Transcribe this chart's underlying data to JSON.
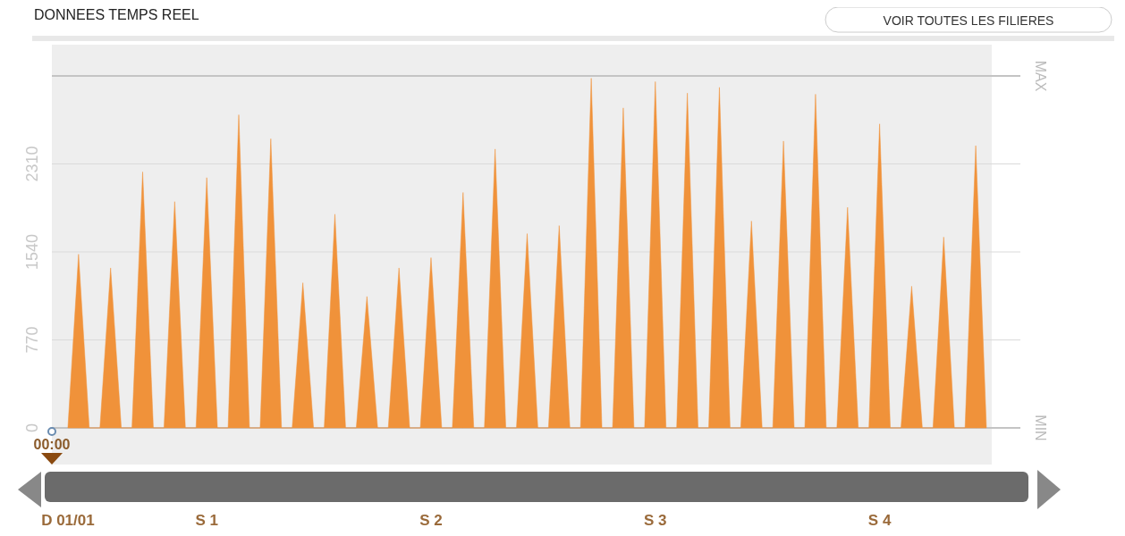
{
  "chart_data": {
    "type": "area",
    "title": "DONNEES TEMPS REEL",
    "categories": [
      "D 01/01",
      null,
      null,
      null,
      null,
      null,
      null,
      null,
      null,
      null,
      null,
      null,
      null,
      "S 1",
      null,
      null,
      null,
      null,
      null,
      null,
      null,
      null,
      null,
      null,
      null,
      null,
      null,
      null,
      null,
      null,
      null,
      null,
      null,
      null,
      "S 2",
      null,
      null,
      null,
      null,
      null,
      null,
      null,
      null,
      null,
      null,
      null,
      null,
      null,
      null,
      null,
      null,
      null,
      null,
      null,
      null,
      "S 3",
      null,
      null,
      null,
      null,
      null,
      null,
      null,
      null,
      null,
      null,
      null,
      null,
      null,
      null,
      null,
      null,
      null,
      null,
      null,
      null,
      "S 4",
      null,
      null,
      null,
      null,
      null,
      null,
      null,
      null,
      null,
      null
    ],
    "series": [
      {
        "color": "#f0923a",
        "values": [
          0,
          1520,
          0,
          0,
          1400,
          0,
          0,
          2240,
          0,
          0,
          1980,
          0,
          0,
          2190,
          0,
          0,
          2740,
          0,
          0,
          2530,
          0,
          0,
          1270,
          0,
          0,
          1870,
          0,
          0,
          1150,
          0,
          0,
          1400,
          0,
          0,
          1490,
          0,
          0,
          2060,
          0,
          0,
          2440,
          0,
          0,
          1700,
          0,
          0,
          1770,
          0,
          0,
          3060,
          0,
          0,
          2800,
          0,
          0,
          3030,
          0,
          0,
          2930,
          0,
          0,
          2980,
          0,
          0,
          1810,
          0,
          0,
          2510,
          0,
          0,
          2920,
          0,
          0,
          1930,
          0,
          0,
          2660,
          0,
          0,
          1240,
          0,
          0,
          1670,
          0,
          0,
          2470,
          0
        ]
      }
    ],
    "ylim": [
      0,
      3080
    ],
    "yticks": [
      0,
      770,
      1540,
      2310
    ],
    "grid": "y",
    "ref_lines": [
      {
        "axis": "y",
        "value": 3080,
        "label": "MAX",
        "color": "#c4c4c4"
      },
      {
        "axis": "y",
        "value": 0,
        "label": "MIN",
        "color": "#c4c4c4"
      }
    ],
    "annotations": [
      "00:00",
      "VOIR TOUTES LES FILIERES"
    ]
  }
}
